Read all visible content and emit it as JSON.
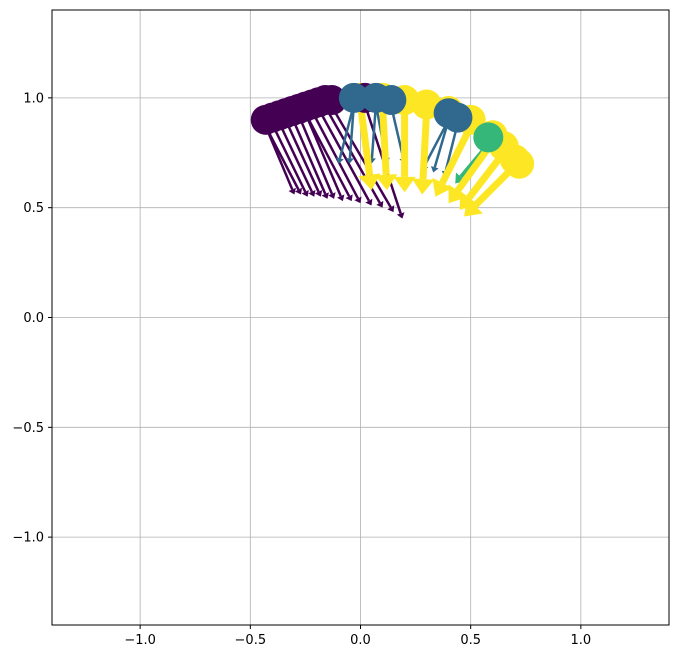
{
  "chart_data": {
    "type": "scatter",
    "title": "",
    "xlabel": "",
    "ylabel": "",
    "xlim": [
      -1.4,
      1.4
    ],
    "ylim": [
      -1.4,
      1.4
    ],
    "grid": true,
    "legend": "none",
    "x_ticks": [
      -1.0,
      -0.5,
      0.0,
      0.5,
      1.0
    ],
    "y_ticks": [
      -1.0,
      -0.5,
      0.0,
      0.5,
      1.0
    ],
    "x_tick_labels": [
      "−1.0",
      "−0.5",
      "0.0",
      "0.5",
      "1.0"
    ],
    "y_tick_labels": [
      "−1.0",
      "−0.5",
      "0.0",
      "0.5",
      "1.0"
    ],
    "colors": {
      "purple": "#440154",
      "blue": "#31688e",
      "green": "#35b779",
      "yellow": "#fde725",
      "grid": "#b0b0b0"
    },
    "series": [
      {
        "color": "purple",
        "points": [
          [
            -0.43,
            0.9
          ],
          [
            -0.4,
            0.91
          ],
          [
            -0.37,
            0.92
          ],
          [
            -0.34,
            0.93
          ],
          [
            -0.31,
            0.94
          ],
          [
            -0.28,
            0.95
          ],
          [
            -0.25,
            0.96
          ],
          [
            -0.22,
            0.97
          ],
          [
            -0.19,
            0.98
          ],
          [
            -0.16,
            0.99
          ],
          [
            -0.13,
            0.99
          ],
          [
            0.02,
            1.0
          ]
        ],
        "arrow_tips": [
          [
            -0.3,
            0.56
          ],
          [
            -0.27,
            0.56
          ],
          [
            -0.24,
            0.55
          ],
          [
            -0.21,
            0.55
          ],
          [
            -0.18,
            0.55
          ],
          [
            -0.15,
            0.54
          ],
          [
            -0.12,
            0.54
          ],
          [
            -0.08,
            0.53
          ],
          [
            -0.04,
            0.53
          ],
          [
            0.0,
            0.52
          ],
          [
            0.05,
            0.51
          ],
          [
            0.1,
            0.5
          ],
          [
            0.15,
            0.48
          ],
          [
            0.19,
            0.45
          ]
        ]
      },
      {
        "color": "blue",
        "points": [
          [
            -0.03,
            1.0
          ],
          [
            0.07,
            1.0
          ],
          [
            0.14,
            0.99
          ],
          [
            0.4,
            0.93
          ],
          [
            0.44,
            0.91
          ]
        ],
        "arrow_tips": [
          [
            -0.1,
            0.7
          ],
          [
            -0.05,
            0.7
          ],
          [
            0.05,
            0.7
          ],
          [
            0.12,
            0.7
          ],
          [
            0.2,
            0.7
          ],
          [
            0.28,
            0.67
          ],
          [
            0.33,
            0.66
          ],
          [
            0.38,
            0.64
          ]
        ]
      },
      {
        "color": "green",
        "points": [
          [
            0.58,
            0.82
          ]
        ],
        "arrow_tips": [
          [
            0.43,
            0.61
          ]
        ]
      },
      {
        "color": "yellow",
        "points": [
          [
            0.0,
            1.0
          ],
          [
            0.1,
            1.0
          ],
          [
            0.2,
            0.99
          ],
          [
            0.3,
            0.97
          ],
          [
            0.4,
            0.94
          ],
          [
            0.5,
            0.9
          ],
          [
            0.6,
            0.83
          ],
          [
            0.65,
            0.78
          ],
          [
            0.7,
            0.72
          ],
          [
            0.72,
            0.7
          ]
        ],
        "arrow_tips": [
          [
            0.05,
            0.58
          ],
          [
            0.12,
            0.58
          ],
          [
            0.2,
            0.57
          ],
          [
            0.28,
            0.56
          ],
          [
            0.34,
            0.55
          ],
          [
            0.4,
            0.52
          ],
          [
            0.45,
            0.49
          ],
          [
            0.47,
            0.46
          ]
        ]
      }
    ]
  }
}
